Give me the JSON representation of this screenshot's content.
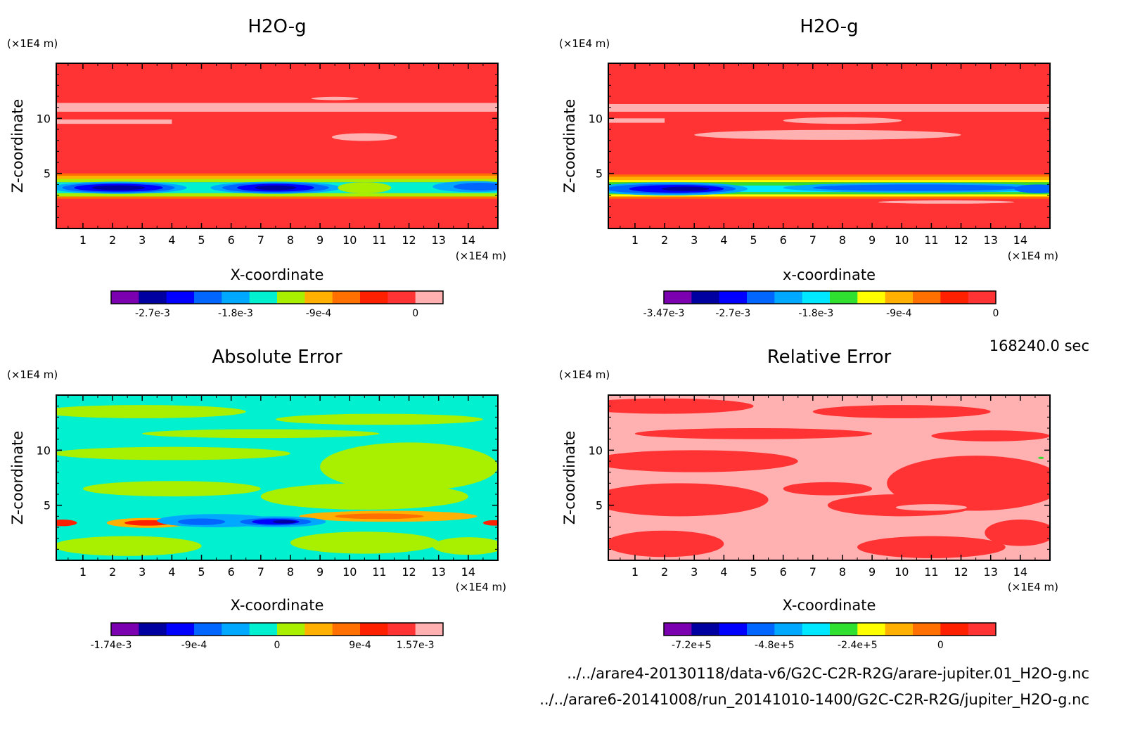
{
  "chart_data": [
    {
      "type": "heatmap",
      "title": "H2O-g",
      "xlabel": "X-coordinate",
      "ylabel": "Z-coordinate",
      "x_unit": "(×1E4 m)",
      "y_unit": "(×1E4 m)",
      "xticks": [
        1,
        2,
        3,
        4,
        5,
        6,
        7,
        8,
        9,
        10,
        11,
        12,
        13,
        14
      ],
      "yticks": [
        5,
        10
      ],
      "xlim": [
        0.1,
        15
      ],
      "ylim": [
        0,
        15
      ],
      "colorbar": {
        "colors": [
          "#7a00b0",
          "#0000a0",
          "#0000ff",
          "#0066ff",
          "#00a8ff",
          "#00f0d0",
          "#a8f000",
          "#ffb000",
          "#ff7000",
          "#ff2000",
          "#ff3333",
          "#ffb0b0"
        ],
        "ticks": [
          "-2.7e-3",
          "-1.8e-3",
          "-9e-4",
          "0"
        ],
        "tick_positions": [
          1.5,
          4.5,
          7.5,
          11
        ]
      },
      "field": {
        "background": "#ff3333",
        "features": [
          {
            "kind": "band",
            "color": "#ffb0b0",
            "y": [
              10.6,
              11.4
            ]
          },
          {
            "kind": "band",
            "color": "#ffb0b0",
            "y": [
              9.5,
              9.9
            ],
            "x": [
              0.1,
              4
            ]
          },
          {
            "kind": "blob",
            "color": "#ffb0b0",
            "cx": 10.5,
            "cy": 8.3,
            "rx": 1.1,
            "ry": 0.35
          },
          {
            "kind": "blob",
            "color": "#ffb0b0",
            "cx": 9.5,
            "cy": 11.8,
            "rx": 0.8,
            "ry": 0.15
          },
          {
            "kind": "band",
            "color": "#ff7000",
            "y": [
              4.8,
              5.0
            ]
          },
          {
            "kind": "band",
            "color": "#ffb000",
            "y": [
              4.5,
              4.8
            ]
          },
          {
            "kind": "band",
            "color": "#a8f000",
            "y": [
              4.2,
              4.5
            ]
          },
          {
            "kind": "band",
            "color": "#00f0d0",
            "y": [
              3.2,
              4.2
            ]
          },
          {
            "kind": "band",
            "color": "#a8f000",
            "y": [
              2.9,
              3.2
            ]
          },
          {
            "kind": "band",
            "color": "#ff7000",
            "y": [
              2.7,
              2.9
            ]
          },
          {
            "kind": "blob",
            "color": "#00a8ff",
            "cx": 2.2,
            "cy": 3.7,
            "rx": 2.3,
            "ry": 0.55
          },
          {
            "kind": "blob",
            "color": "#0066ff",
            "cx": 2.2,
            "cy": 3.7,
            "rx": 1.9,
            "ry": 0.45
          },
          {
            "kind": "blob",
            "color": "#0000ff",
            "cx": 2.2,
            "cy": 3.7,
            "rx": 1.5,
            "ry": 0.35
          },
          {
            "kind": "blob",
            "color": "#0000a0",
            "cx": 2.2,
            "cy": 3.7,
            "rx": 0.9,
            "ry": 0.22
          },
          {
            "kind": "blob",
            "color": "#00a8ff",
            "cx": 7.5,
            "cy": 3.7,
            "rx": 2.2,
            "ry": 0.55
          },
          {
            "kind": "blob",
            "color": "#0066ff",
            "cx": 7.5,
            "cy": 3.7,
            "rx": 1.8,
            "ry": 0.45
          },
          {
            "kind": "blob",
            "color": "#0000ff",
            "cx": 7.5,
            "cy": 3.7,
            "rx": 1.3,
            "ry": 0.35
          },
          {
            "kind": "blob",
            "color": "#0000a0",
            "cx": 7.5,
            "cy": 3.7,
            "rx": 0.7,
            "ry": 0.22
          },
          {
            "kind": "blob",
            "color": "#00a8ff",
            "cx": 14.2,
            "cy": 3.8,
            "rx": 1.4,
            "ry": 0.5
          },
          {
            "kind": "blob",
            "color": "#0066ff",
            "cx": 14.4,
            "cy": 3.8,
            "rx": 0.9,
            "ry": 0.35
          },
          {
            "kind": "blob",
            "color": "#a8f000",
            "cx": 10.5,
            "cy": 3.7,
            "rx": 0.9,
            "ry": 0.5
          }
        ]
      }
    },
    {
      "type": "heatmap",
      "title": "H2O-g",
      "xlabel": "x-coordinate",
      "ylabel": "Z-coordinate",
      "x_unit": "(×1E4 m)",
      "y_unit": "(×1E4 m)",
      "xticks": [
        1,
        2,
        3,
        4,
        5,
        6,
        7,
        8,
        9,
        10,
        11,
        12,
        13,
        14
      ],
      "yticks": [
        5,
        10
      ],
      "xlim": [
        0.1,
        15
      ],
      "ylim": [
        0,
        15
      ],
      "colorbar": {
        "colors": [
          "#7a00b0",
          "#0000a0",
          "#0000ff",
          "#0066ff",
          "#00a8ff",
          "#00e8ff",
          "#30e030",
          "#ffff00",
          "#ffb000",
          "#ff7000",
          "#ff2000",
          "#ff3333"
        ],
        "ticks": [
          "-3.47e-3",
          "-2.7e-3",
          "-1.8e-3",
          "-9e-4",
          "0"
        ],
        "tick_positions": [
          0,
          2.5,
          5.5,
          8.5,
          12
        ]
      },
      "field": {
        "background": "#ff3333",
        "features": [
          {
            "kind": "band",
            "color": "#ffb0b0",
            "y": [
              10.6,
              11.3
            ]
          },
          {
            "kind": "band",
            "color": "#ffb0b0",
            "y": [
              9.6,
              10.0
            ],
            "x": [
              0.1,
              2
            ]
          },
          {
            "kind": "blob",
            "color": "#ffb0b0",
            "cx": 7.5,
            "cy": 8.5,
            "rx": 4.5,
            "ry": 0.45
          },
          {
            "kind": "blob",
            "color": "#ffb0b0",
            "cx": 8,
            "cy": 9.8,
            "rx": 2,
            "ry": 0.3
          },
          {
            "kind": "band",
            "color": "#ff7000",
            "y": [
              4.7,
              4.9
            ]
          },
          {
            "kind": "band",
            "color": "#ffb000",
            "y": [
              4.4,
              4.7
            ]
          },
          {
            "kind": "band",
            "color": "#ffff00",
            "y": [
              4.2,
              4.4
            ]
          },
          {
            "kind": "band",
            "color": "#30e030",
            "y": [
              3.9,
              4.2
            ]
          },
          {
            "kind": "band",
            "color": "#00e8ff",
            "y": [
              3.3,
              3.9
            ]
          },
          {
            "kind": "band",
            "color": "#30e030",
            "y": [
              3.1,
              3.3
            ]
          },
          {
            "kind": "band",
            "color": "#ffff00",
            "y": [
              2.9,
              3.1
            ]
          },
          {
            "kind": "band",
            "color": "#ff7000",
            "y": [
              2.7,
              2.9
            ]
          },
          {
            "kind": "blob",
            "color": "#00a8ff",
            "cx": 2.2,
            "cy": 3.6,
            "rx": 2.6,
            "ry": 0.6
          },
          {
            "kind": "blob",
            "color": "#0066ff",
            "cx": 2.2,
            "cy": 3.6,
            "rx": 2.2,
            "ry": 0.45
          },
          {
            "kind": "blob",
            "color": "#0000ff",
            "cx": 2.4,
            "cy": 3.6,
            "rx": 1.6,
            "ry": 0.35
          },
          {
            "kind": "blob",
            "color": "#0000a0",
            "cx": 2.7,
            "cy": 3.6,
            "rx": 0.8,
            "ry": 0.2
          },
          {
            "kind": "blob",
            "color": "#00a8ff",
            "cx": 10.5,
            "cy": 3.7,
            "rx": 4.5,
            "ry": 0.45
          },
          {
            "kind": "blob",
            "color": "#0066ff",
            "cx": 10.5,
            "cy": 3.7,
            "rx": 3.5,
            "ry": 0.3
          },
          {
            "kind": "blob",
            "color": "#0066ff",
            "cx": 14.6,
            "cy": 3.6,
            "rx": 0.8,
            "ry": 0.4
          },
          {
            "kind": "blob",
            "color": "#ffb0b0",
            "cx": 11.5,
            "cy": 2.4,
            "rx": 2.3,
            "ry": 0.15
          }
        ]
      }
    },
    {
      "type": "heatmap",
      "title": "Absolute Error",
      "xlabel": "X-coordinate",
      "ylabel": "Z-coordinate",
      "x_unit": "(×1E4 m)",
      "y_unit": "(×1E4 m)",
      "xticks": [
        1,
        2,
        3,
        4,
        5,
        6,
        7,
        8,
        9,
        10,
        11,
        12,
        13,
        14
      ],
      "yticks": [
        5,
        10
      ],
      "xlim": [
        0.1,
        15
      ],
      "ylim": [
        0,
        15
      ],
      "colorbar": {
        "colors": [
          "#7a00b0",
          "#0000a0",
          "#0000ff",
          "#0066ff",
          "#00a8ff",
          "#00f0d0",
          "#a8f000",
          "#ffb000",
          "#ff7000",
          "#ff2000",
          "#ff3333",
          "#ffb0b0"
        ],
        "ticks": [
          "-1.74e-3",
          "-9e-4",
          "0",
          "9e-4",
          "1.57e-3"
        ],
        "tick_positions": [
          0,
          3,
          6,
          9,
          11
        ]
      },
      "field": {
        "background": "#00f0d0",
        "features": [
          {
            "kind": "blob",
            "color": "#a8f000",
            "cx": 3,
            "cy": 13.5,
            "rx": 3.5,
            "ry": 0.6
          },
          {
            "kind": "blob",
            "color": "#a8f000",
            "cx": 11,
            "cy": 12.8,
            "rx": 3.5,
            "ry": 0.5
          },
          {
            "kind": "blob",
            "color": "#a8f000",
            "cx": 7,
            "cy": 11.5,
            "rx": 4,
            "ry": 0.4
          },
          {
            "kind": "blob",
            "color": "#a8f000",
            "cx": 4,
            "cy": 9.7,
            "rx": 4,
            "ry": 0.6
          },
          {
            "kind": "blob",
            "color": "#a8f000",
            "cx": 12,
            "cy": 8.5,
            "rx": 3,
            "ry": 2.2
          },
          {
            "kind": "blob",
            "color": "#a8f000",
            "cx": 4,
            "cy": 6.5,
            "rx": 3,
            "ry": 0.7
          },
          {
            "kind": "blob",
            "color": "#a8f000",
            "cx": 10.5,
            "cy": 5.8,
            "rx": 3.5,
            "ry": 1.2
          },
          {
            "kind": "blob",
            "color": "#a8f000",
            "cx": 2.5,
            "cy": 1.3,
            "rx": 2.5,
            "ry": 0.9
          },
          {
            "kind": "blob",
            "color": "#a8f000",
            "cx": 10.5,
            "cy": 1.6,
            "rx": 2.5,
            "ry": 1
          },
          {
            "kind": "blob",
            "color": "#a8f000",
            "cx": 14,
            "cy": 1.3,
            "rx": 1.2,
            "ry": 0.8
          },
          {
            "kind": "blob",
            "color": "#ffb000",
            "cx": 11.3,
            "cy": 4.0,
            "rx": 3,
            "ry": 0.5
          },
          {
            "kind": "blob",
            "color": "#ff7000",
            "cx": 11,
            "cy": 4.0,
            "rx": 1.5,
            "ry": 0.25
          },
          {
            "kind": "blob",
            "color": "#ffb000",
            "cx": 3.2,
            "cy": 3.4,
            "rx": 1.4,
            "ry": 0.45
          },
          {
            "kind": "blob",
            "color": "#ff2000",
            "cx": 3.2,
            "cy": 3.4,
            "rx": 0.8,
            "ry": 0.25
          },
          {
            "kind": "blob",
            "color": "#ff2000",
            "cx": 0.3,
            "cy": 3.4,
            "rx": 0.5,
            "ry": 0.3
          },
          {
            "kind": "blob",
            "color": "#ff2000",
            "cx": 14.9,
            "cy": 3.4,
            "rx": 0.4,
            "ry": 0.25
          },
          {
            "kind": "blob",
            "color": "#00a8ff",
            "cx": 5.5,
            "cy": 3.6,
            "rx": 2,
            "ry": 0.6
          },
          {
            "kind": "blob",
            "color": "#00a8ff",
            "cx": 7.5,
            "cy": 3.5,
            "rx": 1.7,
            "ry": 0.5
          },
          {
            "kind": "blob",
            "color": "#0066ff",
            "cx": 7.5,
            "cy": 3.5,
            "rx": 1.2,
            "ry": 0.35
          },
          {
            "kind": "blob",
            "color": "#0000ff",
            "cx": 7.5,
            "cy": 3.5,
            "rx": 0.8,
            "ry": 0.25
          },
          {
            "kind": "blob",
            "color": "#0000a0",
            "cx": 7.8,
            "cy": 3.5,
            "rx": 0.4,
            "ry": 0.15
          },
          {
            "kind": "blob",
            "color": "#0066ff",
            "cx": 5,
            "cy": 3.5,
            "rx": 0.8,
            "ry": 0.3
          }
        ]
      }
    },
    {
      "type": "heatmap",
      "title": "Relative Error",
      "xlabel": "X-coordinate",
      "ylabel": "Z-coordinate",
      "x_unit": "(×1E4 m)",
      "y_unit": "(×1E4 m)",
      "xticks": [
        1,
        2,
        3,
        4,
        5,
        6,
        7,
        8,
        9,
        10,
        11,
        12,
        13,
        14
      ],
      "yticks": [
        5,
        10
      ],
      "xlim": [
        0.1,
        15
      ],
      "ylim": [
        0,
        15
      ],
      "colorbar": {
        "colors": [
          "#7a00b0",
          "#0000a0",
          "#0000ff",
          "#0066ff",
          "#00a8ff",
          "#00e8ff",
          "#30e030",
          "#ffff00",
          "#ffb000",
          "#ff7000",
          "#ff2000",
          "#ff3333"
        ],
        "ticks": [
          "-7.2e+5",
          "-4.8e+5",
          "-2.4e+5",
          "0"
        ],
        "tick_positions": [
          1,
          4,
          7,
          10
        ]
      },
      "field": {
        "background": "#ffb0b0",
        "features": [
          {
            "kind": "blob",
            "color": "#ff3333",
            "cx": 2,
            "cy": 14,
            "rx": 3,
            "ry": 0.7
          },
          {
            "kind": "blob",
            "color": "#ff3333",
            "cx": 10,
            "cy": 13.5,
            "rx": 3,
            "ry": 0.6
          },
          {
            "kind": "blob",
            "color": "#ff3333",
            "cx": 5,
            "cy": 11.5,
            "rx": 4,
            "ry": 0.5
          },
          {
            "kind": "blob",
            "color": "#ff3333",
            "cx": 13,
            "cy": 11.3,
            "rx": 2,
            "ry": 0.5
          },
          {
            "kind": "blob",
            "color": "#ff3333",
            "cx": 3,
            "cy": 9,
            "rx": 3.5,
            "ry": 1
          },
          {
            "kind": "blob",
            "color": "#ff3333",
            "cx": 12.5,
            "cy": 7,
            "rx": 3,
            "ry": 2.5
          },
          {
            "kind": "blob",
            "color": "#ff3333",
            "cx": 10,
            "cy": 5,
            "rx": 2.5,
            "ry": 1
          },
          {
            "kind": "blob",
            "color": "#ff3333",
            "cx": 2.5,
            "cy": 5.5,
            "rx": 3,
            "ry": 1.5
          },
          {
            "kind": "blob",
            "color": "#ff3333",
            "cx": 2,
            "cy": 1.5,
            "rx": 2,
            "ry": 1.2
          },
          {
            "kind": "blob",
            "color": "#ff3333",
            "cx": 11,
            "cy": 1.2,
            "rx": 2.5,
            "ry": 1
          },
          {
            "kind": "blob",
            "color": "#ff3333",
            "cx": 14,
            "cy": 2.5,
            "rx": 1.2,
            "ry": 1.2
          },
          {
            "kind": "blob",
            "color": "#ff3333",
            "cx": 7.5,
            "cy": 6.5,
            "rx": 1.5,
            "ry": 0.6
          },
          {
            "kind": "blob",
            "color": "#ffb0b0",
            "cx": 11,
            "cy": 4.8,
            "rx": 1.2,
            "ry": 0.3
          },
          {
            "kind": "blob",
            "color": "#30e030",
            "cx": 14.7,
            "cy": 9.3,
            "rx": 0.1,
            "ry": 0.1
          }
        ]
      }
    }
  ],
  "footer": {
    "time": "168240.0 sec",
    "file1": "../../arare4-20130118/data-v6/G2C-C2R-R2G/arare-jupiter.01_H2O-g.nc",
    "file2": "../../arare6-20141008/run_20141010-1400/G2C-C2R-R2G/jupiter_H2O-g.nc"
  }
}
